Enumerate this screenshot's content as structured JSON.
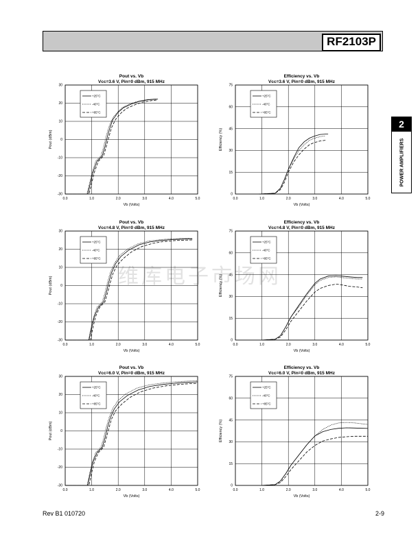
{
  "header": {
    "part_number": "RF2103P"
  },
  "side_tab": {
    "number": "2",
    "label": "POWER AMPLIFIERS"
  },
  "footer": {
    "left": "Rev B1 010720",
    "right": "2-9"
  },
  "watermark": "维库电子市场网",
  "chart_data": [
    {
      "type": "line",
      "title": "Pout vs. Vb",
      "subtitle": "Vcc=3.6 V, Pin=0 dBm, 915 MHz",
      "xlabel": "Vb (Volts)",
      "ylabel": "Pout (dBm)",
      "xlim": [
        0,
        5
      ],
      "ylim": [
        -30,
        30
      ],
      "xticks": [
        "0.0",
        "1.0",
        "2.0",
        "3.0",
        "4.0",
        "5.0"
      ],
      "yticks": [
        "-30",
        "-20",
        "-10",
        "0",
        "10",
        "20",
        "30"
      ],
      "grid": true,
      "legend": "top-left",
      "series": [
        {
          "name": "+25°C",
          "style": "solid",
          "x": [
            0.0,
            0.7,
            0.85,
            0.95,
            1.05,
            1.2,
            1.4,
            1.5,
            1.6,
            1.7,
            1.8,
            2.0,
            2.2,
            2.5,
            2.8,
            3.1,
            3.5
          ],
          "y": [
            -30,
            -30,
            -30,
            -24,
            -18,
            -12,
            -9,
            -4,
            2,
            7,
            11,
            15,
            17.5,
            19.5,
            21,
            21.8,
            22.3
          ]
        },
        {
          "name": "-40°C",
          "style": "dotted",
          "x": [
            0.0,
            0.7,
            0.82,
            0.92,
            1.02,
            1.15,
            1.35,
            1.45,
            1.55,
            1.65,
            1.8,
            2.0,
            2.2,
            2.5,
            2.8,
            3.1,
            3.4
          ],
          "y": [
            -30,
            -30,
            -30,
            -24,
            -18,
            -12,
            -9,
            -4,
            2,
            7,
            12,
            15.5,
            18,
            20,
            21.2,
            22,
            22.3
          ]
        },
        {
          "name": "+85°C",
          "style": "dashed",
          "x": [
            0.0,
            0.75,
            0.9,
            1.0,
            1.1,
            1.25,
            1.45,
            1.55,
            1.65,
            1.75,
            1.9,
            2.1,
            2.3,
            2.6,
            2.9,
            3.2,
            3.5
          ],
          "y": [
            -30,
            -30,
            -30,
            -24,
            -18,
            -12,
            -9,
            -4,
            1.5,
            6.5,
            11,
            14.5,
            17,
            19,
            20.5,
            21.3,
            21.8
          ]
        }
      ]
    },
    {
      "type": "line",
      "title": "Efficiency vs. Vb",
      "subtitle": "Vcc=3.6 V, Pin=0 dBm, 915 MHz",
      "xlabel": "Vb (Volts)",
      "ylabel": "Efficiency (%)",
      "xlim": [
        0,
        5
      ],
      "ylim": [
        0,
        75
      ],
      "xticks": [
        "0.0",
        "1.0",
        "2.0",
        "3.0",
        "4.0",
        "5.0"
      ],
      "yticks": [
        "0",
        "15",
        "30",
        "45",
        "60",
        "75"
      ],
      "grid": true,
      "legend": "top-left",
      "series": [
        {
          "name": "+25°C",
          "style": "solid",
          "x": [
            0.9,
            1.5,
            1.7,
            1.85,
            2.0,
            2.2,
            2.4,
            2.6,
            2.8,
            3.0,
            3.2,
            3.5
          ],
          "y": [
            0,
            0.5,
            4,
            10,
            17,
            25,
            32,
            36,
            38.5,
            40,
            41,
            41.3
          ]
        },
        {
          "name": "-40°C",
          "style": "dotted",
          "x": [
            0.9,
            1.5,
            1.7,
            1.85,
            2.0,
            2.2,
            2.4,
            2.6,
            2.8,
            3.0,
            3.2,
            3.4
          ],
          "y": [
            0,
            0.5,
            4,
            10,
            17,
            24,
            30,
            34,
            37,
            38.5,
            39.5,
            40
          ]
        },
        {
          "name": "+85°C",
          "style": "dashed",
          "x": [
            0.9,
            1.5,
            1.7,
            1.85,
            2.0,
            2.2,
            2.4,
            2.6,
            2.8,
            3.0,
            3.2,
            3.4
          ],
          "y": [
            0,
            0.5,
            3,
            8,
            15,
            22,
            27,
            31,
            34,
            35.5,
            36.5,
            37
          ]
        }
      ]
    },
    {
      "type": "line",
      "title": "Pout vs. Vb",
      "subtitle": "Vcc=4.8 V, Pin=0 dBm, 915 MHz",
      "xlabel": "Vb (Volts)",
      "ylabel": "Pout (dBm)",
      "xlim": [
        0,
        5
      ],
      "ylim": [
        -30,
        30
      ],
      "xticks": [
        "0.0",
        "1.0",
        "2.0",
        "3.0",
        "4.0",
        "5.0"
      ],
      "yticks": [
        "-30",
        "-20",
        "-10",
        "0",
        "10",
        "20",
        "30"
      ],
      "grid": true,
      "legend": "top-left",
      "series": [
        {
          "name": "+25°C",
          "style": "solid",
          "x": [
            0.0,
            0.8,
            0.9,
            1.0,
            1.1,
            1.25,
            1.45,
            1.55,
            1.65,
            1.75,
            1.9,
            2.1,
            2.4,
            2.8,
            3.2,
            3.6,
            4.0,
            4.5,
            4.8
          ],
          "y": [
            -30,
            -30,
            -30,
            -23,
            -17,
            -12,
            -9,
            -4,
            2,
            7,
            12,
            16,
            19.5,
            22.5,
            24,
            24.8,
            25.3,
            25.6,
            25.7
          ]
        },
        {
          "name": "-40°C",
          "style": "dotted",
          "x": [
            0.0,
            0.8,
            0.88,
            0.98,
            1.08,
            1.2,
            1.4,
            1.5,
            1.6,
            1.7,
            1.85,
            2.05,
            2.35,
            2.75,
            3.15,
            3.6,
            4.0,
            4.5,
            4.8
          ],
          "y": [
            -30,
            -30,
            -30,
            -23,
            -17,
            -12,
            -9,
            -4,
            2,
            7,
            12,
            16.5,
            20,
            23,
            24.5,
            25.3,
            25.7,
            26,
            26
          ]
        },
        {
          "name": "+85°C",
          "style": "dashed",
          "x": [
            0.0,
            0.85,
            0.95,
            1.05,
            1.15,
            1.3,
            1.5,
            1.6,
            1.7,
            1.8,
            1.95,
            2.2,
            2.5,
            2.9,
            3.3,
            3.7,
            4.1,
            4.5,
            4.8
          ],
          "y": [
            -30,
            -30,
            -30,
            -23,
            -17,
            -12,
            -9,
            -4,
            1.5,
            6.5,
            11,
            15,
            18.5,
            21.5,
            23.2,
            24.2,
            24.7,
            25,
            25.1
          ]
        }
      ]
    },
    {
      "type": "line",
      "title": "Efficiency vs. Vb",
      "subtitle": "Vcc=4.8 V, Pin=0 dBm, 915 MHz",
      "xlabel": "Vb (Volts)",
      "ylabel": "Efficiency (%)",
      "xlim": [
        0,
        5
      ],
      "ylim": [
        0,
        75
      ],
      "xticks": [
        "0.0",
        "1.0",
        "2.0",
        "3.0",
        "4.0",
        "5.0"
      ],
      "yticks": [
        "0",
        "15",
        "30",
        "45",
        "60",
        "75"
      ],
      "grid": true,
      "legend": "top-left",
      "series": [
        {
          "name": "+25°C",
          "style": "solid",
          "x": [
            1.0,
            1.5,
            1.7,
            1.9,
            2.1,
            2.4,
            2.7,
            3.0,
            3.2,
            3.5,
            3.8,
            4.0,
            4.3,
            4.6,
            4.8
          ],
          "y": [
            0,
            0.5,
            3,
            9,
            16,
            24,
            32,
            39,
            42,
            44,
            44.3,
            44,
            43.5,
            43,
            43
          ]
        },
        {
          "name": "-40°C",
          "style": "dotted",
          "x": [
            1.0,
            1.5,
            1.7,
            1.9,
            2.1,
            2.4,
            2.7,
            3.0,
            3.2,
            3.5,
            3.8,
            4.0,
            4.3,
            4.6,
            4.8
          ],
          "y": [
            0,
            0.5,
            3,
            9,
            16,
            23,
            31,
            38,
            41,
            43,
            43.5,
            43,
            42.5,
            42,
            42
          ]
        },
        {
          "name": "+85°C",
          "style": "dashed",
          "x": [
            1.0,
            1.5,
            1.7,
            1.9,
            2.1,
            2.4,
            2.7,
            3.0,
            3.2,
            3.5,
            3.8,
            4.0,
            4.3,
            4.6,
            4.8
          ],
          "y": [
            0,
            0.5,
            2,
            7,
            13,
            20,
            27,
            33,
            35.5,
            37.5,
            38.5,
            38,
            37,
            36.5,
            36
          ]
        }
      ]
    },
    {
      "type": "line",
      "title": "Pout vs. Vb",
      "subtitle": "Vcc=6.0 V, Pin=0 dBm, 915 MHz",
      "xlabel": "Vb (Volts)",
      "ylabel": "Pout (dBm)",
      "xlim": [
        0,
        5
      ],
      "ylim": [
        -30,
        30
      ],
      "xticks": [
        "0.0",
        "1.0",
        "2.0",
        "3.0",
        "4.0",
        "5.0"
      ],
      "yticks": [
        "-30",
        "-20",
        "-10",
        "0",
        "10",
        "20",
        "30"
      ],
      "grid": true,
      "legend": "top-left",
      "series": [
        {
          "name": "+25°C",
          "style": "solid",
          "x": [
            0.0,
            0.75,
            0.85,
            0.95,
            1.05,
            1.2,
            1.4,
            1.5,
            1.6,
            1.7,
            1.85,
            2.05,
            2.35,
            2.75,
            3.2,
            3.7,
            4.2,
            4.6,
            5.0
          ],
          "y": [
            -30,
            -30,
            -30,
            -23,
            -17,
            -12,
            -9,
            -4,
            2,
            7,
            12,
            16,
            19.5,
            22.5,
            24.5,
            25.6,
            26.3,
            26.7,
            27
          ]
        },
        {
          "name": "-40°C",
          "style": "dotted",
          "x": [
            0.0,
            0.75,
            0.83,
            0.93,
            1.03,
            1.15,
            1.35,
            1.45,
            1.55,
            1.65,
            1.8,
            2.0,
            2.3,
            2.7,
            3.15,
            3.65,
            4.15,
            4.6,
            5.0
          ],
          "y": [
            -30,
            -30,
            -30,
            -23,
            -17,
            -12,
            -9,
            -4,
            2,
            7,
            12.5,
            16.8,
            20.5,
            23.5,
            25.3,
            26.3,
            27,
            27.4,
            27.6
          ]
        },
        {
          "name": "+85°C",
          "style": "dashed",
          "x": [
            0.0,
            0.8,
            0.9,
            1.0,
            1.1,
            1.25,
            1.45,
            1.55,
            1.65,
            1.75,
            1.9,
            2.15,
            2.45,
            2.85,
            3.3,
            3.8,
            4.3,
            4.7,
            5.0
          ],
          "y": [
            -30,
            -30,
            -30,
            -23,
            -17,
            -12,
            -9,
            -4,
            1.5,
            6.5,
            11,
            15,
            18.5,
            21.5,
            23.5,
            24.8,
            25.6,
            26,
            26.2
          ]
        }
      ]
    },
    {
      "type": "line",
      "title": "Efficiency vs. Vb",
      "subtitle": "Vcc=6.0 V, Pin=0 dBm, 915 MHz",
      "xlabel": "Vb (Volts)",
      "ylabel": "Efficiency (%)",
      "xlim": [
        0,
        5
      ],
      "ylim": [
        0,
        75
      ],
      "xticks": [
        "0.0",
        "1.0",
        "2.0",
        "3.0",
        "4.0",
        "5.0"
      ],
      "yticks": [
        "0",
        "15",
        "30",
        "45",
        "60",
        "75"
      ],
      "grid": true,
      "legend": "top-left",
      "series": [
        {
          "name": "+25°C",
          "style": "solid",
          "x": [
            1.0,
            1.5,
            1.7,
            1.9,
            2.1,
            2.4,
            2.7,
            3.0,
            3.3,
            3.6,
            3.9,
            4.2,
            4.5,
            4.8,
            5.0
          ],
          "y": [
            0,
            0.5,
            3,
            8,
            14,
            21,
            28,
            34,
            37,
            38.5,
            39.3,
            39.6,
            39.5,
            39.3,
            39.2
          ]
        },
        {
          "name": "-40°C",
          "style": "dotted",
          "x": [
            1.0,
            1.5,
            1.7,
            1.9,
            2.1,
            2.4,
            2.7,
            3.0,
            3.3,
            3.6,
            3.9,
            4.2,
            4.5,
            4.8,
            5.0
          ],
          "y": [
            0,
            0.5,
            3,
            8,
            14,
            21,
            28,
            34,
            38.5,
            41.5,
            43,
            43.3,
            43,
            42.3,
            42
          ]
        },
        {
          "name": "+85°C",
          "style": "dashed",
          "x": [
            1.0,
            1.5,
            1.7,
            1.9,
            2.1,
            2.4,
            2.7,
            3.0,
            3.3,
            3.6,
            3.9,
            4.2,
            4.5,
            4.8,
            5.0
          ],
          "y": [
            0,
            0.5,
            2,
            6,
            11,
            17,
            23,
            27.5,
            30.5,
            32,
            33,
            33.5,
            33.8,
            33.8,
            33.8
          ]
        }
      ]
    }
  ]
}
